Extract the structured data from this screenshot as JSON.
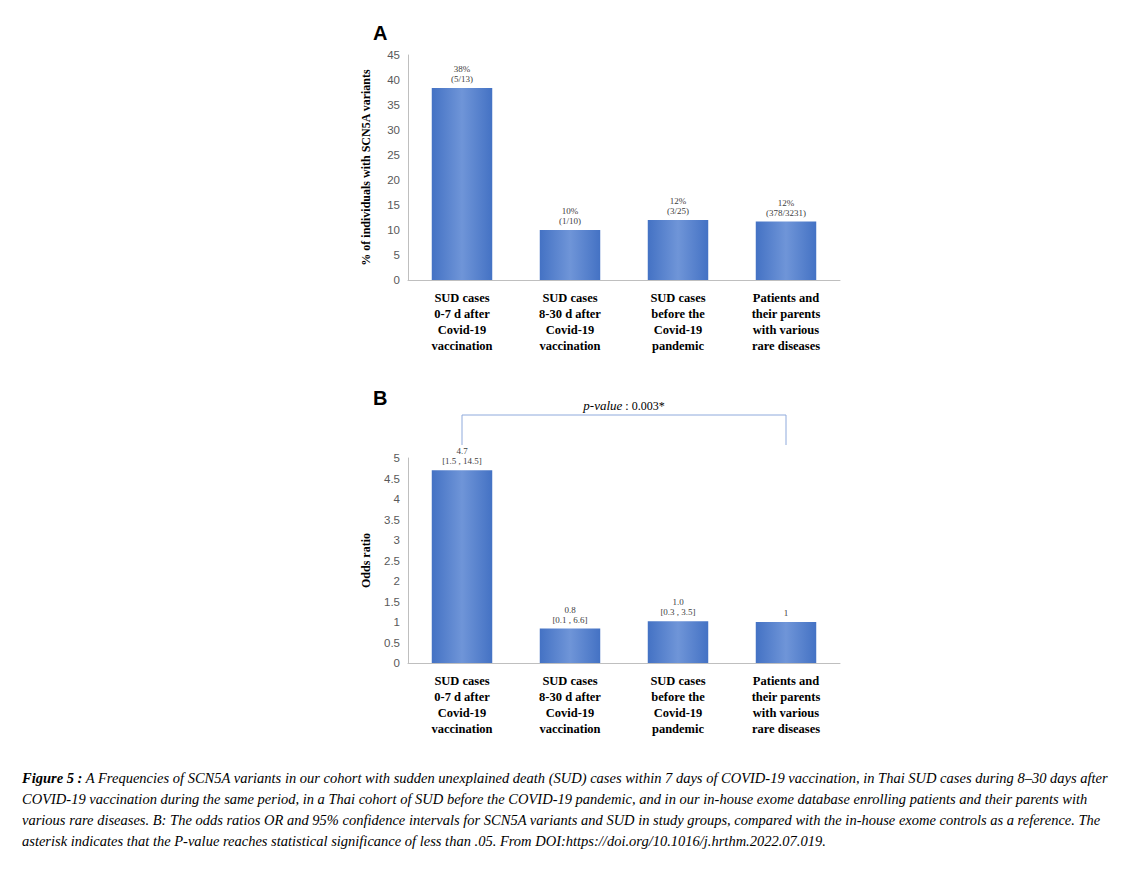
{
  "chart_data": [
    {
      "type": "bar",
      "title": "A",
      "categories": [
        "SUD cases\n0-7 d after\nCovid-19\nvaccination",
        "SUD cases\n8-30 d after\nCovid-19\nvaccination",
        "SUD cases\nbefore the\nCovid-19\npandemic",
        "Patients and\ntheir parents\nwith various\nrare diseases"
      ],
      "values": [
        38.4,
        10,
        12,
        11.7
      ],
      "value_labels": [
        "38%\n(5/13)",
        "10%\n(1/10)",
        "12%\n(3/25)",
        "12%\n(378/3231)"
      ],
      "y_label": "% of individuals with SCN5A variants",
      "ylim": [
        0,
        45
      ],
      "yticks": [
        0,
        5,
        10,
        15,
        20,
        25,
        30,
        35,
        40,
        45
      ],
      "color": "#4472c4",
      "grid": false,
      "data_labels": true
    },
    {
      "type": "bar",
      "title": "B",
      "categories": [
        "SUD cases\n0-7 d after\nCovid-19\nvaccination",
        "SUD cases\n8-30 d after\nCovid-19\nvaccination",
        "SUD cases\nbefore the\nCovid-19\npandemic",
        "Patients and\ntheir parents\nwith various\nrare diseases"
      ],
      "values": [
        4.7,
        0.84,
        1.02,
        1
      ],
      "value_labels": [
        "4.7\n[1.5 , 14.5]",
        "0.8\n[0.1 , 6.6]",
        "1.0\n[0.3 , 3.5]",
        "1"
      ],
      "y_label": "Odds ratio",
      "ylim": [
        0,
        5
      ],
      "yticks": [
        0,
        0.5,
        1,
        1.5,
        2,
        2.5,
        3,
        3.5,
        4,
        4.5,
        5
      ],
      "color": "#4472c4",
      "grid": false,
      "data_labels": true,
      "annotations": [
        {
          "text": "p-value : 0.003*",
          "from": "SUD cases\n0-7 d after\nCovid-19\nvaccination",
          "to": "Patients and\ntheir parents\nwith various\nrare diseases"
        }
      ]
    }
  ],
  "caption": {
    "label": "Figure 5 :",
    "text": "A Frequencies of SCN5A variants in our cohort with sudden unexplained death (SUD) cases within 7 days of COVID-19 vaccination, in Thai SUD cases during 8–30 days after COVID-19 vaccination during the same period, in a Thai cohort of SUD before the COVID-19 pandemic, and in our in-house exome database enrolling patients and their parents with various rare diseases. B: The odds ratios OR and 95% confidence intervals for SCN5A variants and SUD in study groups, compared with the in-house exome controls as a reference. The asterisk indicates that the P-value reaches statistical significance of less than .05. From DOI:https://doi.org/10.1016/j.hrthm.2022.07.019."
  }
}
